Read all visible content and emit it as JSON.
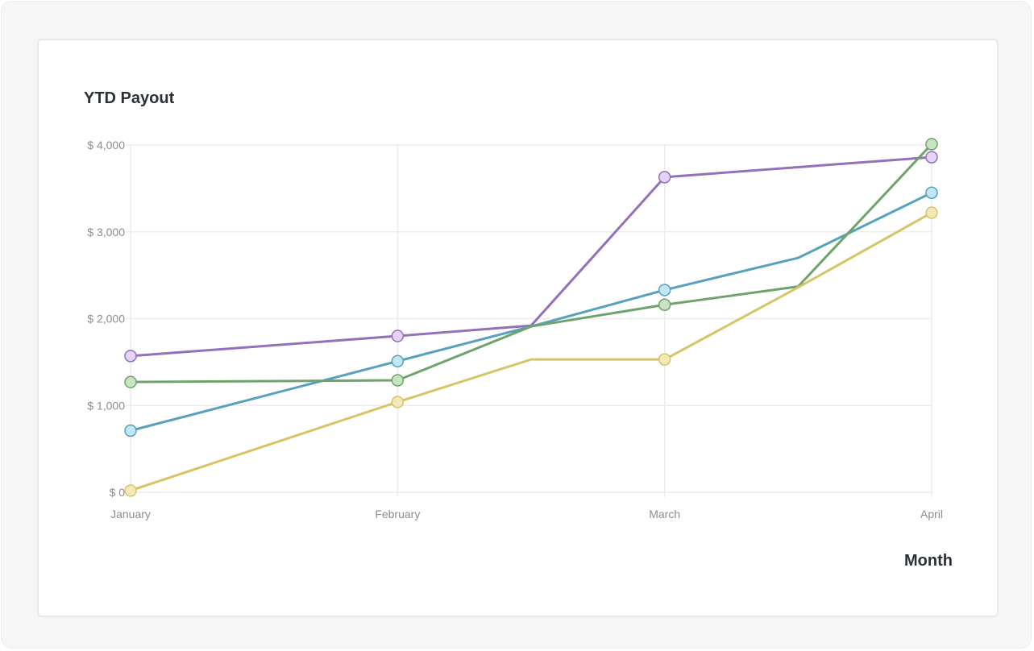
{
  "chart_data": {
    "type": "line",
    "title": "YTD Payout",
    "xlabel": "Month",
    "ylabel": "",
    "categories": [
      "January",
      "February",
      "March",
      "April"
    ],
    "y_ticks": [
      0,
      1000,
      2000,
      3000,
      4000
    ],
    "y_tick_labels": [
      "$ 0",
      "$ 1,000",
      "$ 2,000",
      "$ 3,000",
      "$ 4,000"
    ],
    "ylim": [
      0,
      4000
    ],
    "grid": true,
    "legend": "none",
    "series": [
      {
        "color": "#9370bb",
        "marker_fill": "#e6d3f6",
        "points": [
          {
            "x": 0,
            "y": 1570,
            "marker": true
          },
          {
            "x": 1,
            "y": 1800,
            "marker": true
          },
          {
            "x": 1.5,
            "y": 1920,
            "marker": false
          },
          {
            "x": 2,
            "y": 3630,
            "marker": true
          },
          {
            "x": 3,
            "y": 3860,
            "marker": true
          }
        ]
      },
      {
        "color": "#56a2bd",
        "marker_fill": "#c3e6f5",
        "points": [
          {
            "x": 0,
            "y": 710,
            "marker": true
          },
          {
            "x": 1,
            "y": 1510,
            "marker": true
          },
          {
            "x": 1.5,
            "y": 1910,
            "marker": false
          },
          {
            "x": 2,
            "y": 2330,
            "marker": true
          },
          {
            "x": 2.5,
            "y": 2700,
            "marker": false
          },
          {
            "x": 3,
            "y": 3450,
            "marker": true
          }
        ]
      },
      {
        "color": "#6ea46c",
        "marker_fill": "#c9e4c3",
        "points": [
          {
            "x": 0,
            "y": 1270,
            "marker": true
          },
          {
            "x": 1,
            "y": 1290,
            "marker": true
          },
          {
            "x": 1.5,
            "y": 1910,
            "marker": false
          },
          {
            "x": 2,
            "y": 2160,
            "marker": true
          },
          {
            "x": 2.5,
            "y": 2370,
            "marker": false
          },
          {
            "x": 3,
            "y": 4010,
            "marker": true
          }
        ]
      },
      {
        "color": "#d6c566",
        "marker_fill": "#f4e7b8",
        "points": [
          {
            "x": 0,
            "y": 20,
            "marker": true
          },
          {
            "x": 1,
            "y": 1040,
            "marker": true
          },
          {
            "x": 1.5,
            "y": 1530,
            "marker": false
          },
          {
            "x": 2,
            "y": 1530,
            "marker": true
          },
          {
            "x": 2.5,
            "y": 2360,
            "marker": false
          },
          {
            "x": 3,
            "y": 3220,
            "marker": true
          }
        ]
      }
    ]
  }
}
